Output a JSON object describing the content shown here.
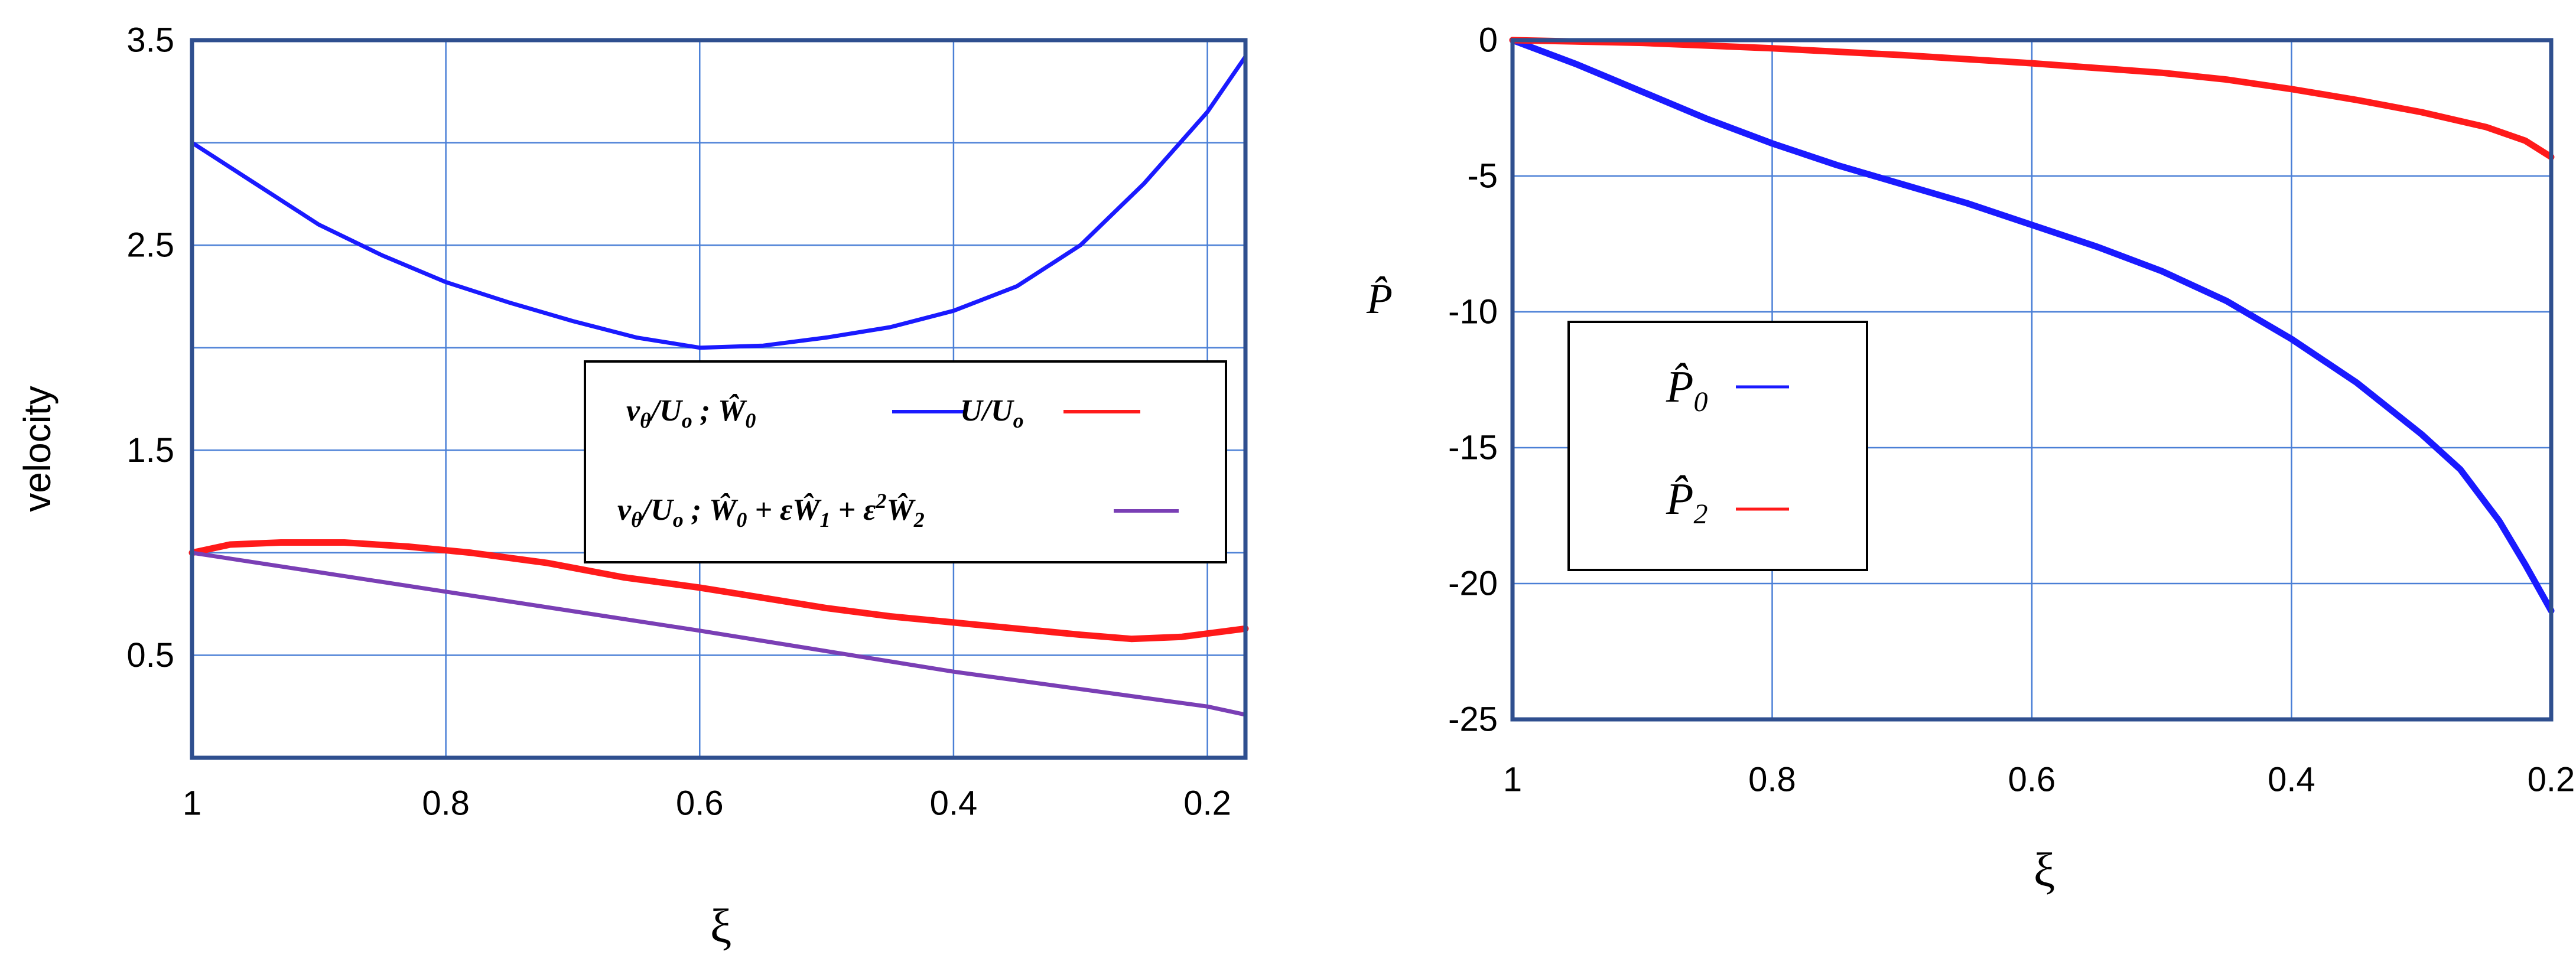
{
  "chart_data": [
    {
      "type": "line",
      "ylabel": "velocity",
      "xlabel": "ξ",
      "xlim": [
        1.0,
        0.17
      ],
      "ylim": [
        0.0,
        3.5
      ],
      "x_reversed": true,
      "grid": true,
      "xticks": [
        1.0,
        0.8,
        0.6,
        0.4,
        0.2
      ],
      "xtick_labels": [
        "1",
        "0.8",
        "0.6",
        "0.4",
        "0.2"
      ],
      "yticks": [
        0.5,
        1.5,
        2.5,
        3.5
      ],
      "ytick_labels": [
        "0.5",
        "1.5",
        "2.5",
        "3.5"
      ],
      "legend_placement": "center-right",
      "series": [
        {
          "name": "vθ/Uo ; Ŵ0",
          "color": "#1a1aff",
          "x": [
            1.0,
            0.95,
            0.9,
            0.85,
            0.8,
            0.75,
            0.7,
            0.65,
            0.6,
            0.55,
            0.5,
            0.45,
            0.4,
            0.35,
            0.3,
            0.25,
            0.2,
            0.17
          ],
          "y": [
            3.0,
            2.8,
            2.6,
            2.45,
            2.32,
            2.22,
            2.13,
            2.05,
            2.0,
            2.01,
            2.05,
            2.1,
            2.18,
            2.3,
            2.5,
            2.8,
            3.15,
            3.42
          ]
        },
        {
          "name": "U/Uo",
          "color": "#ff1a1a",
          "x": [
            1.0,
            0.97,
            0.93,
            0.88,
            0.83,
            0.78,
            0.72,
            0.66,
            0.6,
            0.55,
            0.5,
            0.45,
            0.4,
            0.35,
            0.3,
            0.26,
            0.22,
            0.17
          ],
          "y": [
            1.0,
            1.04,
            1.05,
            1.05,
            1.03,
            1.0,
            0.95,
            0.88,
            0.83,
            0.78,
            0.73,
            0.69,
            0.66,
            0.63,
            0.6,
            0.58,
            0.59,
            0.63
          ]
        },
        {
          "name": "vθ/Uo ; Ŵ0 + εŴ1 + ε²Ŵ2",
          "color": "#7a3fb5",
          "x": [
            1.0,
            0.8,
            0.6,
            0.4,
            0.2,
            0.17
          ],
          "y": [
            1.0,
            0.81,
            0.62,
            0.42,
            0.25,
            0.21
          ]
        }
      ]
    },
    {
      "type": "line",
      "ylabel": "P̂",
      "xlabel": "ξ",
      "xlim": [
        1.0,
        0.2
      ],
      "ylim": [
        -25,
        0
      ],
      "x_reversed": true,
      "grid": true,
      "xticks": [
        1.0,
        0.8,
        0.6,
        0.4,
        0.2
      ],
      "xtick_labels": [
        "1",
        "0.8",
        "0.6",
        "0.4",
        "0.2"
      ],
      "yticks": [
        0,
        -5,
        -10,
        -15,
        -20,
        -25
      ],
      "ytick_labels": [
        "0",
        "-5",
        "-10",
        "-15",
        "-20",
        "-25"
      ],
      "legend_placement": "center-left",
      "series": [
        {
          "name": "P̂0",
          "color": "#1a1aff",
          "x": [
            1.0,
            0.95,
            0.9,
            0.85,
            0.8,
            0.75,
            0.7,
            0.65,
            0.6,
            0.55,
            0.5,
            0.45,
            0.4,
            0.35,
            0.3,
            0.27,
            0.24,
            0.22,
            0.2
          ],
          "y": [
            0.0,
            -0.9,
            -1.9,
            -2.9,
            -3.8,
            -4.6,
            -5.3,
            -6.0,
            -6.8,
            -7.6,
            -8.5,
            -9.6,
            -11.0,
            -12.6,
            -14.5,
            -15.8,
            -17.7,
            -19.3,
            -21.0
          ]
        },
        {
          "name": "P̂2",
          "color": "#ff1a1a",
          "x": [
            1.0,
            0.9,
            0.8,
            0.7,
            0.6,
            0.5,
            0.45,
            0.4,
            0.35,
            0.3,
            0.25,
            0.22,
            0.2
          ],
          "y": [
            0.0,
            -0.1,
            -0.3,
            -0.55,
            -0.85,
            -1.2,
            -1.45,
            -1.8,
            -2.2,
            -2.65,
            -3.2,
            -3.7,
            -4.3
          ]
        }
      ]
    }
  ]
}
